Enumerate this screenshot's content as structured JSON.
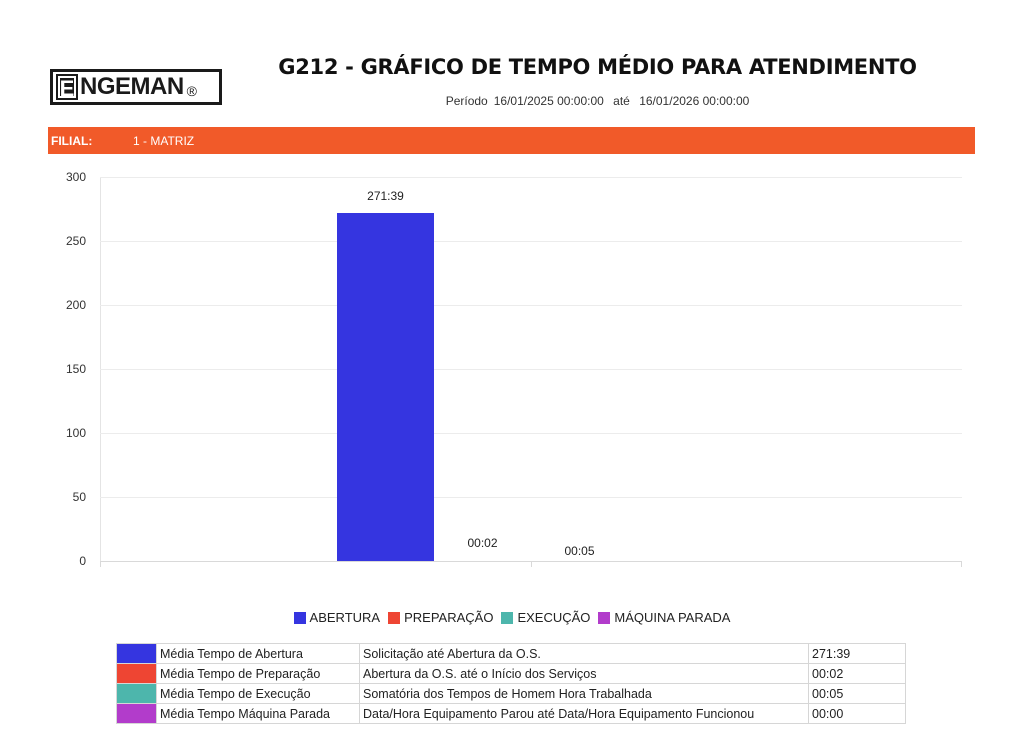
{
  "header": {
    "logo": {
      "letter": "E",
      "text": "NGEMAN",
      "registered": "®"
    },
    "title": "G212 - GRÁFICO DE TEMPO MÉDIO PARA ATENDIMENTO",
    "period": {
      "label": "Período",
      "start": "16/01/2025 00:00:00",
      "connector": "até",
      "end": "16/01/2026 00:00:00"
    }
  },
  "filial": {
    "label": "FILIAL:",
    "value": "1 - MATRIZ",
    "color": "#F15A29"
  },
  "colors": {
    "abertura": "#3535E0",
    "preparacao": "#EE4533",
    "execucao": "#4DB6AC",
    "maquina_parada": "#B23CCB"
  },
  "chart_data": {
    "type": "bar",
    "title": "G212 - GRÁFICO DE TEMPO MÉDIO PARA ATENDIMENTO",
    "xlabel": "",
    "ylabel": "",
    "ylim": [
      0,
      300
    ],
    "yticks": [
      0,
      50,
      100,
      150,
      200,
      250,
      300
    ],
    "grid": true,
    "legend_position": "bottom",
    "categories": [
      ""
    ],
    "series": [
      {
        "name": "ABERTURA",
        "values": [
          271.65
        ],
        "label": "271:39",
        "color": "#3535E0"
      },
      {
        "name": "PREPARAÇÃO",
        "values": [
          0.03
        ],
        "label": "00:02",
        "color": "#EE4533"
      },
      {
        "name": "EXECUÇÃO",
        "values": [
          0.08
        ],
        "label": "00:05",
        "color": "#4DB6AC"
      },
      {
        "name": "MÁQUINA PARADA",
        "values": [
          0
        ],
        "label": "",
        "color": "#B23CCB"
      }
    ]
  },
  "ytick_labels": [
    "300",
    "250",
    "200",
    "150",
    "100",
    "50",
    "0"
  ],
  "legend": [
    {
      "label": "ABERTURA",
      "color": "#3535E0"
    },
    {
      "label": "PREPARAÇÃO",
      "color": "#EE4533"
    },
    {
      "label": "EXECUÇÃO",
      "color": "#4DB6AC"
    },
    {
      "label": "MÁQUINA PARADA",
      "color": "#B23CCB"
    }
  ],
  "table": {
    "rows": [
      {
        "color": "#3535E0",
        "name": "Média Tempo de Abertura",
        "description": "Solicitação até Abertura da O.S.",
        "value": "271:39"
      },
      {
        "color": "#EE4533",
        "name": "Média Tempo de Preparação",
        "description": "Abertura da O.S. até o Início dos Serviços",
        "value": "00:02"
      },
      {
        "color": "#4DB6AC",
        "name": "Média Tempo de Execução",
        "description": "Somatória dos Tempos de Homem Hora Trabalhada",
        "value": "00:05"
      },
      {
        "color": "#B23CCB",
        "name": "Média Tempo Máquina Parada",
        "description": "Data/Hora Equipamento Parou até Data/Hora Equipamento Funcionou",
        "value": "00:00"
      }
    ]
  }
}
